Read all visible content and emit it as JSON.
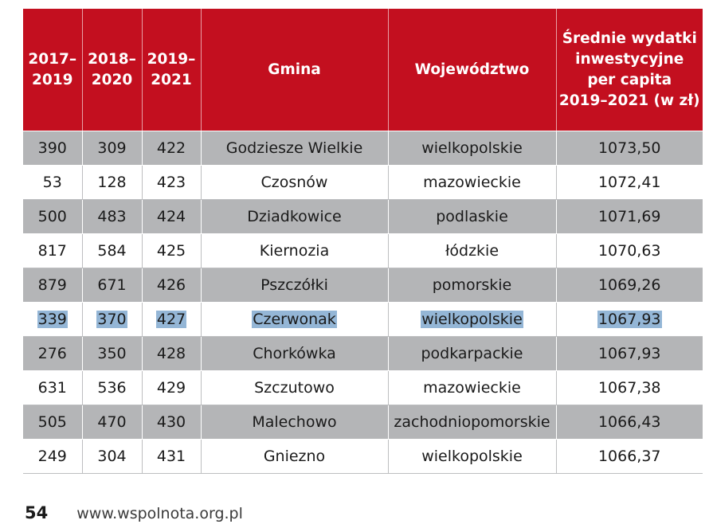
{
  "table": {
    "headers": [
      [
        "2017–",
        "2019"
      ],
      [
        "2018–",
        "2020"
      ],
      [
        "2019–",
        "2021"
      ],
      [
        "Gmina"
      ],
      [
        "Województwo"
      ],
      [
        "Średnie wydatki",
        "inwestycyjne",
        "per capita",
        "2019–2021 (w zł)"
      ]
    ],
    "rows": [
      [
        "390",
        "309",
        "422",
        "Godziesze Wielkie",
        "wielkopolskie",
        "1073,50"
      ],
      [
        "53",
        "128",
        "423",
        "Czosnów",
        "mazowieckie",
        "1072,41"
      ],
      [
        "500",
        "483",
        "424",
        "Dziadkowice",
        "podlaskie",
        "1071,69"
      ],
      [
        "817",
        "584",
        "425",
        "Kiernozia",
        "łódzkie",
        "1070,63"
      ],
      [
        "879",
        "671",
        "426",
        "Pszczółki",
        "pomorskie",
        "1069,26"
      ],
      [
        "339",
        "370",
        "427",
        "Czerwonak",
        "wielkopolskie",
        "1067,93"
      ],
      [
        "276",
        "350",
        "428",
        "Chorkówka",
        "podkarpackie",
        "1067,93"
      ],
      [
        "631",
        "536",
        "429",
        "Szczutowo",
        "mazowieckie",
        "1067,38"
      ],
      [
        "505",
        "470",
        "430",
        "Malechowo",
        "zachodniopomorskie",
        "1066,43"
      ],
      [
        "249",
        "304",
        "431",
        "Gniezno",
        "wielkopolskie",
        "1066,37"
      ]
    ],
    "highlighted_row": 5
  },
  "footer": {
    "page_number": "54",
    "url": "www.wspolnota.org.pl"
  },
  "colors": {
    "header_background": "#c30f1f",
    "stripe_gray": "#b4b5b7",
    "highlight_blue": "#94b6d6"
  }
}
